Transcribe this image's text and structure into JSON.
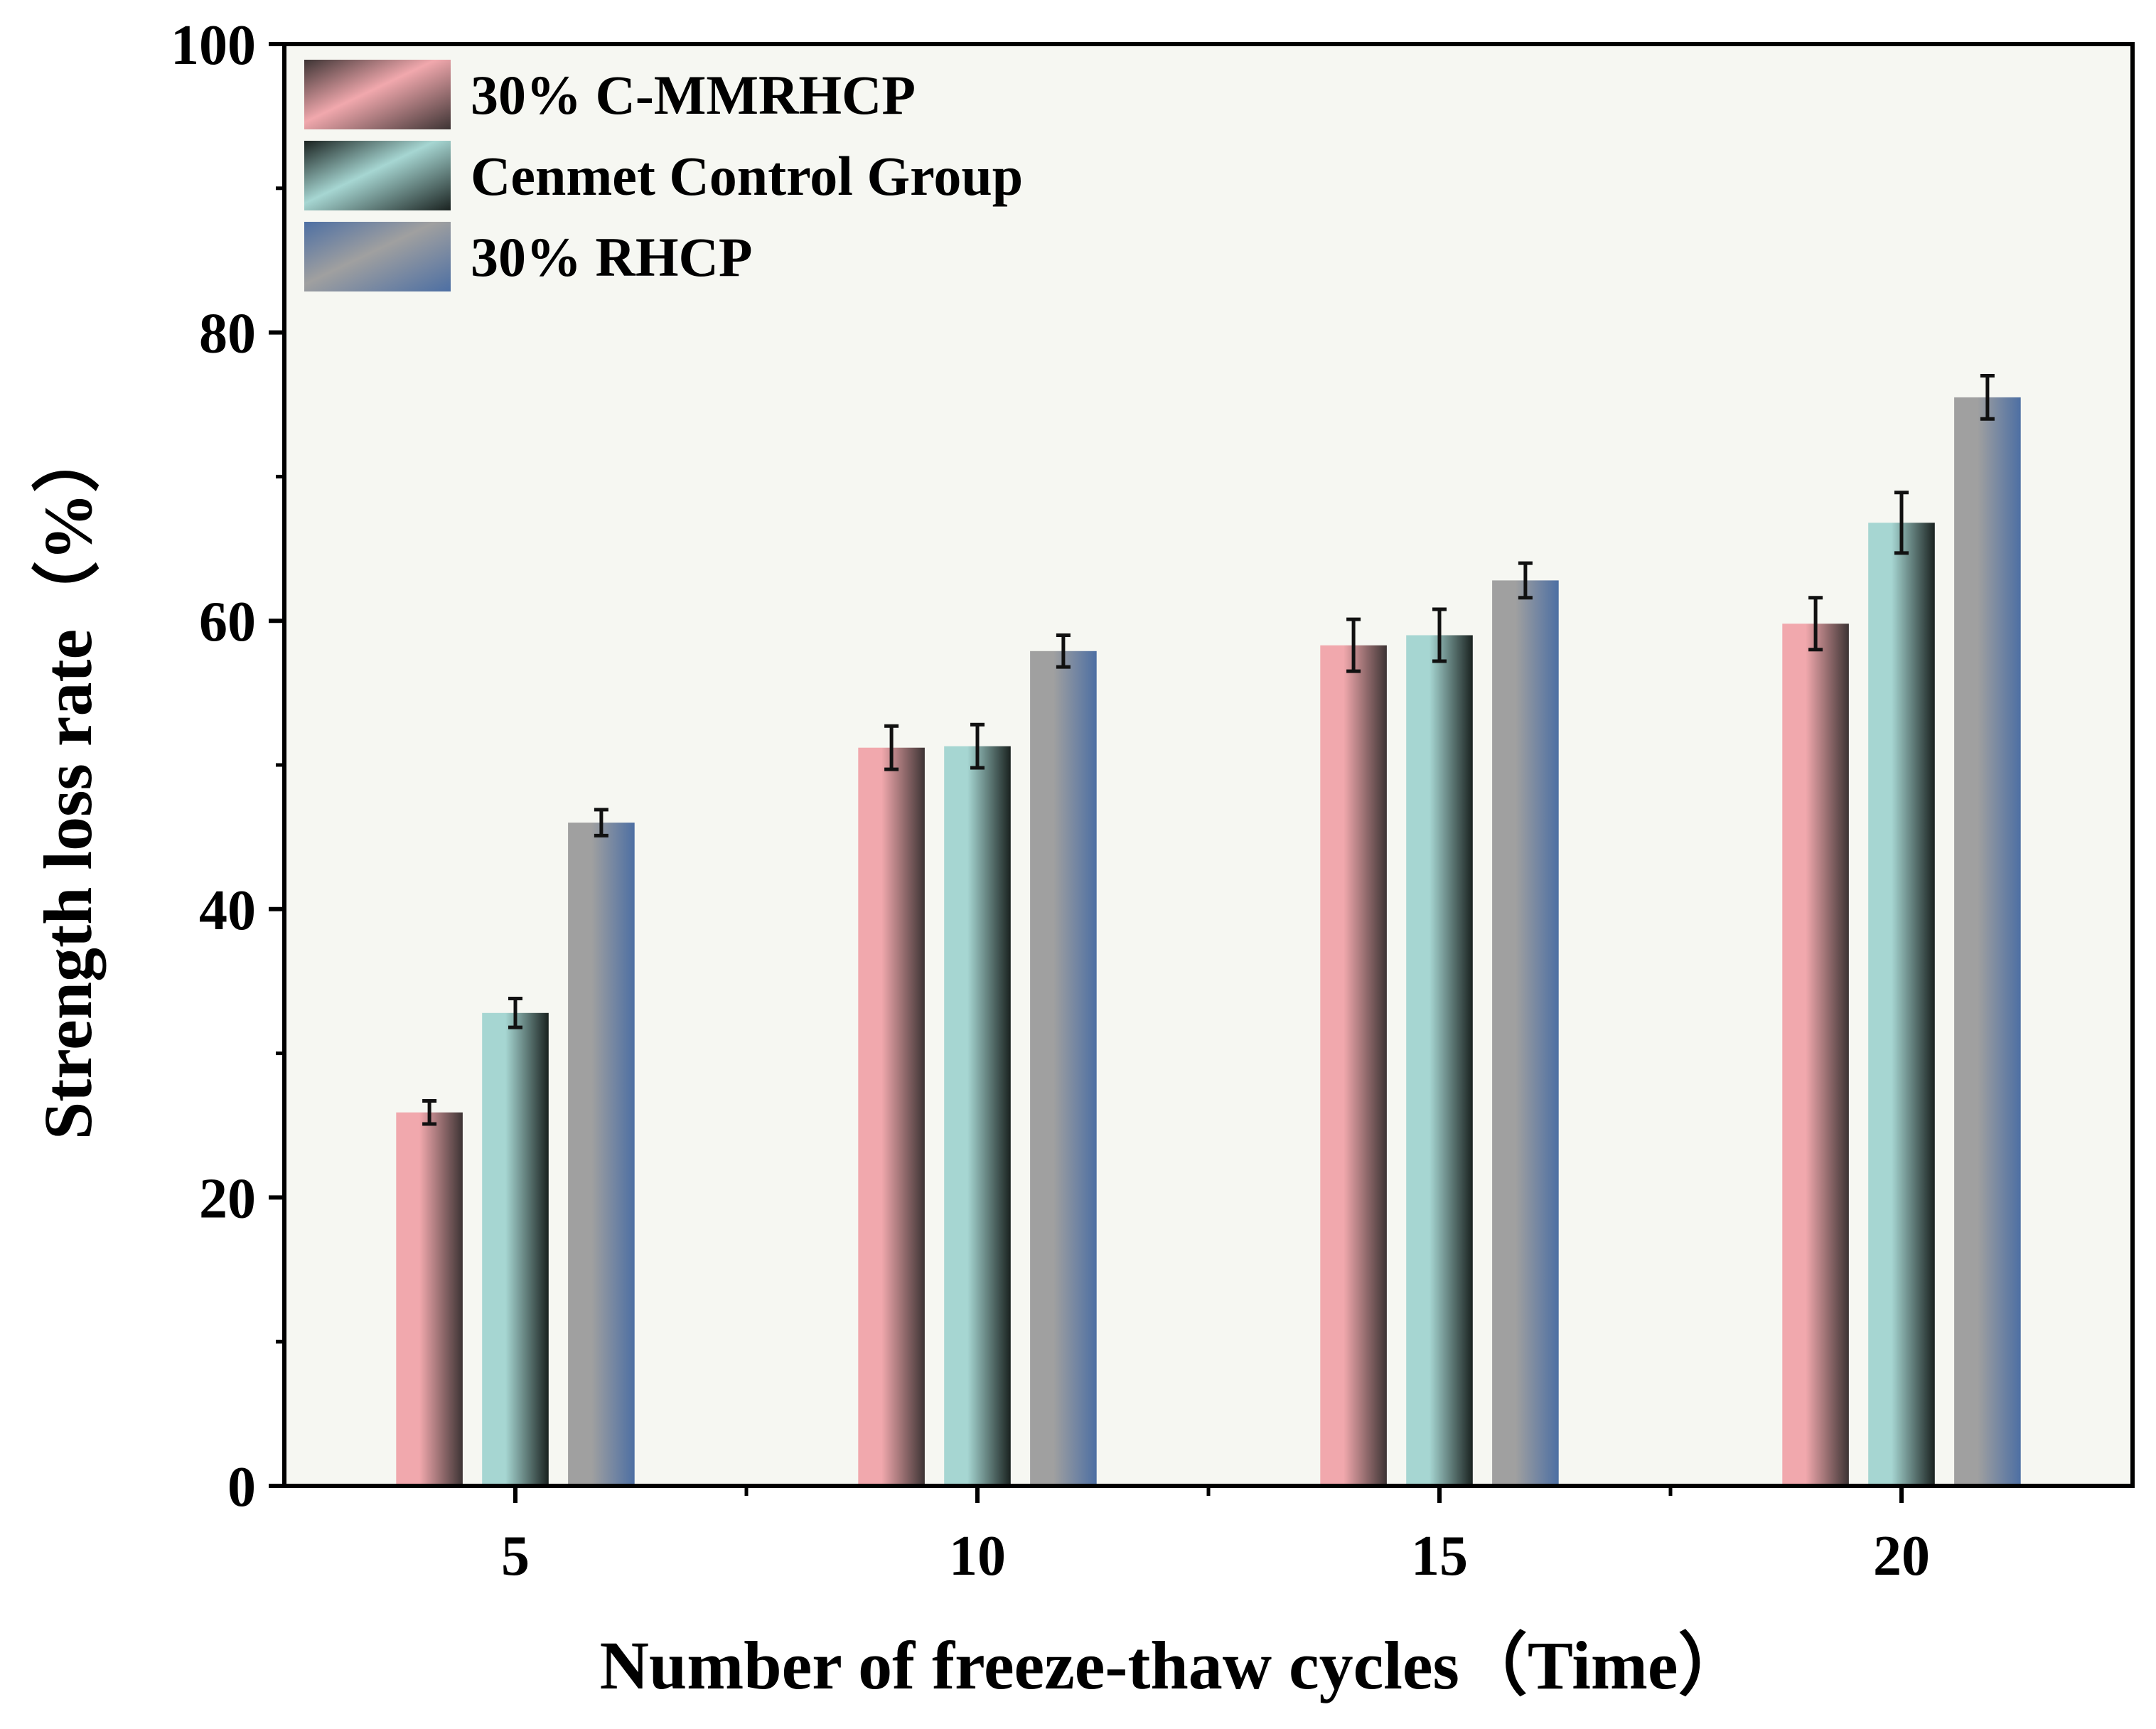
{
  "chart_data": {
    "type": "bar",
    "title": "",
    "xlabel": "Number of freeze-thaw cycles（Time）",
    "ylabel": "Strength loss rate（%）",
    "categories": [
      "5",
      "10",
      "15",
      "20"
    ],
    "ylim": [
      0,
      100
    ],
    "xlim": [
      2.5,
      22.5
    ],
    "x_positions": [
      5,
      10,
      15,
      20
    ],
    "x_minor_ticks": [
      7.5,
      12.5,
      17.5
    ],
    "yticks": [
      0,
      20,
      40,
      60,
      80,
      100
    ],
    "y_minor_ticks": [
      10,
      30,
      50,
      70,
      90
    ],
    "grid": false,
    "legend": "top-left",
    "background_color": "#f6f7f2",
    "series": [
      {
        "name": "30% C-MMRHCP",
        "values": [
          25.9,
          51.2,
          58.3,
          59.8
        ],
        "errors": [
          0.8,
          1.5,
          1.8,
          1.8
        ],
        "color_light": "#f1a8ad",
        "color_dark": "#3d3434"
      },
      {
        "name": "Cenmet Control Group",
        "values": [
          32.8,
          51.3,
          59.0,
          66.8
        ],
        "errors": [
          1.0,
          1.5,
          1.8,
          2.1
        ],
        "color_light": "#a6d6d2",
        "color_dark": "#1a2220"
      },
      {
        "name": "30% RHCP",
        "values": [
          46.0,
          57.9,
          62.8,
          75.5
        ],
        "errors": [
          0.9,
          1.1,
          1.2,
          1.5
        ],
        "color_light": "#a0a0a0",
        "color_dark": "#4d6fa3"
      }
    ]
  }
}
